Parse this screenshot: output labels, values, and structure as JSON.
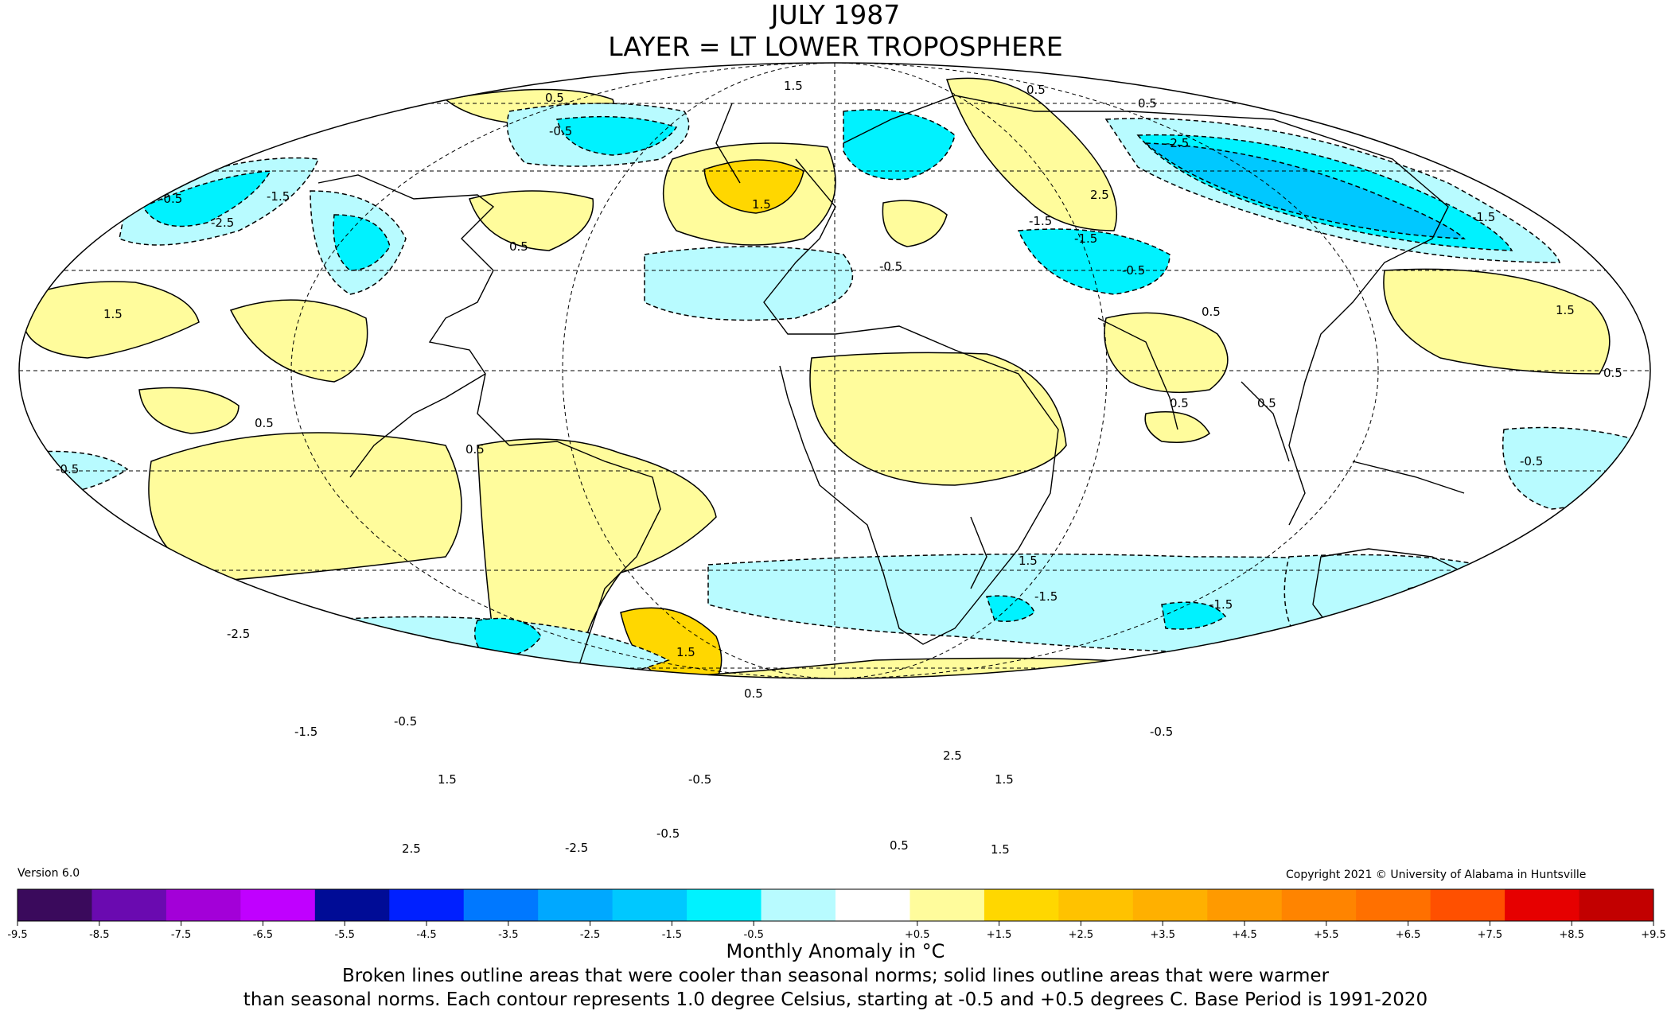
{
  "title_line1": "JULY 1987",
  "title_line2": "LAYER = LT LOWER TROPOSPHERE",
  "version": "Version 6.0",
  "copyright": "Copyright 2021 © University of Alabama in Huntsville",
  "colorbar": {
    "title": "Monthly Anomaly in °C",
    "colors": [
      "#3a0a5c",
      "#6a0ab0",
      "#a300d8",
      "#c000ff",
      "#000c96",
      "#0020ff",
      "#0078ff",
      "#00a8ff",
      "#00c8ff",
      "#00f2ff",
      "#b8fbff",
      "#ffffff",
      "#fffc9c",
      "#ffd700",
      "#ffc200",
      "#ffb000",
      "#ff9a00",
      "#ff8400",
      "#ff7000",
      "#ff5000",
      "#e60000",
      "#c20000"
    ],
    "tick_labels": [
      "-9.5",
      "-8.5",
      "-7.5",
      "-6.5",
      "-5.5",
      "-4.5",
      "-3.5",
      "-2.5",
      "-1.5",
      "-0.5",
      "+0.5",
      "+1.5",
      "+2.5",
      "+3.5",
      "+4.5",
      "+5.5",
      "+6.5",
      "+7.5",
      "+8.5",
      "+9.5"
    ]
  },
  "note_line1": "Broken lines outline areas that were cooler than seasonal norms; solid lines outline areas that were warmer",
  "note_line2": "than seasonal norms. Each contour represents 1.0 degree Celsius, starting at -0.5 and +0.5 degrees C. Base Period is 1991-2020",
  "contour_labels": [
    "0.5",
    "1.5",
    "-0.5",
    "-1.5",
    "-2.5",
    "2.5",
    "0.5",
    "1.5",
    "-0.5",
    "-1.5",
    "-2.5",
    "0.5",
    "1.5",
    "0.5",
    "0.5",
    "-0.5",
    "-0.5",
    "-1.5",
    "1.5",
    "-2.5",
    "-1.5",
    "-0.5",
    "2.5",
    "1.5",
    "-0.5",
    "0.5",
    "1.5",
    "-0.5",
    "0.5",
    "-1.5",
    "-0.5",
    "0.5",
    "1.5",
    "-2.5",
    "0.5",
    "-0.5",
    "0.5",
    "1.5",
    "0.5",
    "2.5",
    "-1.5",
    "0.5",
    "-1.5",
    "-0.5",
    "1.5"
  ],
  "colors_key": {
    "cool_light": "#b8fbff",
    "cool_mid": "#00f2ff",
    "cool_dark": "#00c8ff",
    "cool_deeper": "#0078ff",
    "warm_light": "#fffc9c",
    "warm_mid": "#ffd700",
    "warm_dark": "#ffc200"
  }
}
